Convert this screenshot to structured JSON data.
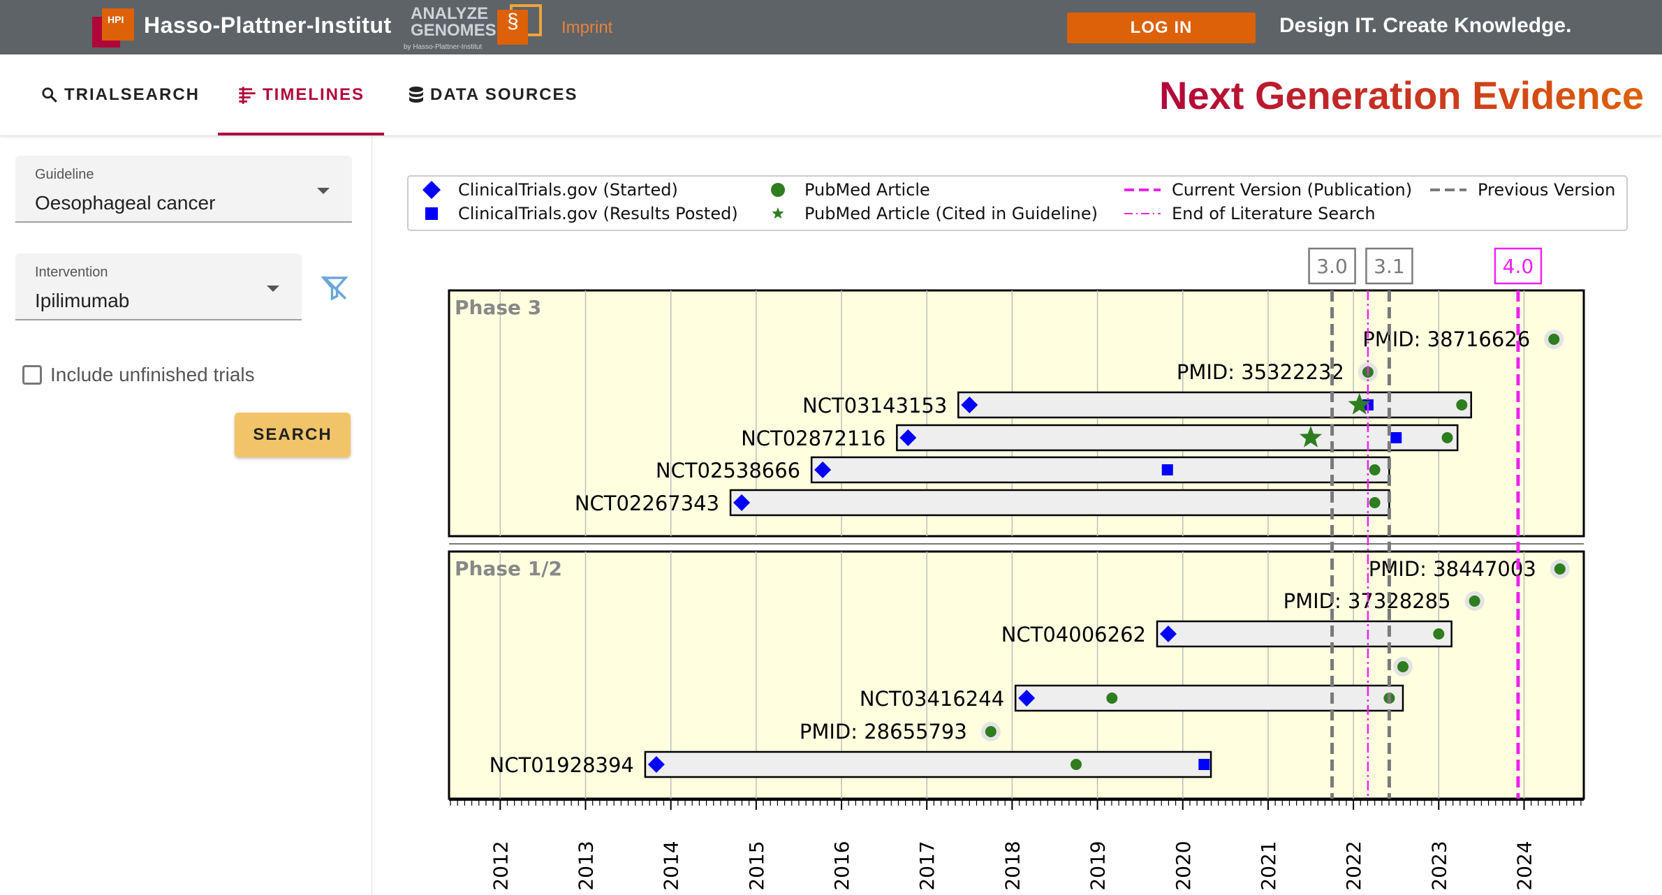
{
  "header": {
    "org_name": "Hasso-Plattner-Institut",
    "org_logo_text": "HPI",
    "analyze_genomes_line1": "ANALYZE",
    "analyze_genomes_line2": "GENOMES",
    "analyze_genomes_sub": "by Hasso-Plattner-Institut",
    "imprint_label": "Imprint",
    "login_label": "LOG IN",
    "tagline": "Design IT. Create Knowledge."
  },
  "nav": {
    "tabs": [
      {
        "label": "TRIALSEARCH",
        "icon": "search-icon",
        "active": false
      },
      {
        "label": "TIMELINES",
        "icon": "timeline-icon",
        "active": true
      },
      {
        "label": "DATA SOURCES",
        "icon": "database-icon",
        "active": false
      }
    ],
    "brand_title": "Next Generation Evidence"
  },
  "sidebar": {
    "guideline_label": "Guideline",
    "guideline_value": "Oesophageal cancer",
    "intervention_label": "Intervention",
    "intervention_value": "Ipilimumab",
    "include_unfinished_label": "Include unfinished trials",
    "include_unfinished_checked": false,
    "search_label": "SEARCH"
  },
  "colors": {
    "accent": "#b1063a",
    "brand_orange": "#dd6108",
    "marker_blue": "#0000ff",
    "marker_green": "#2e7d1e",
    "current_version": "#ee22ee",
    "previous_version": "#7a7a7a",
    "panel_bg": "#ffffe0"
  },
  "chart_data": {
    "type": "timeline",
    "legend": [
      {
        "label": "ClinicalTrials.gov (Started)",
        "marker": "diamond-blue"
      },
      {
        "label": "ClinicalTrials.gov (Results Posted)",
        "marker": "square-blue"
      },
      {
        "label": "PubMed Article",
        "marker": "circle-green"
      },
      {
        "label": "PubMed Article (Cited in Guideline)",
        "marker": "star-green"
      },
      {
        "label": "Current Version (Publication)",
        "marker": "dashed-magenta"
      },
      {
        "label": "End of Literature Search",
        "marker": "dashdot-magenta"
      },
      {
        "label": "Previous Version",
        "marker": "dashed-gray"
      }
    ],
    "x_ticks": [
      "2012",
      "2013",
      "2014",
      "2015",
      "2016",
      "2017",
      "2018",
      "2019",
      "2020",
      "2021",
      "2022",
      "2023",
      "2024"
    ],
    "xlim": [
      2011.4,
      2024.7
    ],
    "versions": [
      {
        "label": "3.0",
        "year": 2021.75,
        "kind": "previous"
      },
      {
        "label": "3.1",
        "year": 2022.42,
        "kind": "previous"
      },
      {
        "label": "4.0",
        "year": 2023.93,
        "kind": "current"
      }
    ],
    "end_of_literature_search": 2022.17,
    "panels": [
      {
        "title": "Phase 3",
        "rows": [
          {
            "label": "PMID: 38716626",
            "kind": "pmid",
            "year": 2024.35
          },
          {
            "label": "PMID: 35322232",
            "kind": "pmid",
            "year": 2022.17
          },
          {
            "label": "NCT03143153",
            "kind": "trial",
            "start": 2017.5,
            "end": 2023.38,
            "results": [
              2022.17
            ],
            "articles": [
              2023.27
            ],
            "cited": [
              2022.07
            ]
          },
          {
            "label": "NCT02872116",
            "kind": "trial",
            "start": 2016.78,
            "end": 2023.22,
            "results": [
              2022.5
            ],
            "articles": [
              2023.1
            ],
            "cited": [
              2021.5
            ]
          },
          {
            "label": "NCT02538666",
            "kind": "trial",
            "start": 2015.78,
            "end": 2022.42,
            "results": [
              2019.82
            ],
            "articles": [
              2022.25
            ],
            "cited": []
          },
          {
            "label": "NCT02267343",
            "kind": "trial",
            "start": 2014.83,
            "end": 2022.42,
            "results": [],
            "articles": [
              2022.25
            ],
            "cited": []
          }
        ]
      },
      {
        "title": "Phase 1/2",
        "rows": [
          {
            "label": "PMID: 38447003",
            "kind": "pmid",
            "year": 2024.42
          },
          {
            "label": "PMID: 37328285",
            "kind": "pmid",
            "year": 2023.42
          },
          {
            "label": "NCT04006262",
            "kind": "trial",
            "start": 2019.83,
            "end": 2023.15,
            "results": [],
            "articles": [
              2023.0
            ],
            "cited": []
          },
          {
            "label": "",
            "kind": "pmid",
            "year": 2022.58
          },
          {
            "label": "NCT03416244",
            "kind": "trial",
            "start": 2018.17,
            "end": 2022.58,
            "results": [],
            "articles": [
              2019.17,
              2022.42
            ],
            "cited": []
          },
          {
            "label": "PMID: 28655793",
            "kind": "pmid",
            "year": 2017.75
          },
          {
            "label": "NCT01928394",
            "kind": "trial",
            "start": 2013.83,
            "end": 2020.33,
            "results": [
              2020.25
            ],
            "articles": [
              2018.75
            ],
            "cited": []
          }
        ]
      }
    ]
  }
}
